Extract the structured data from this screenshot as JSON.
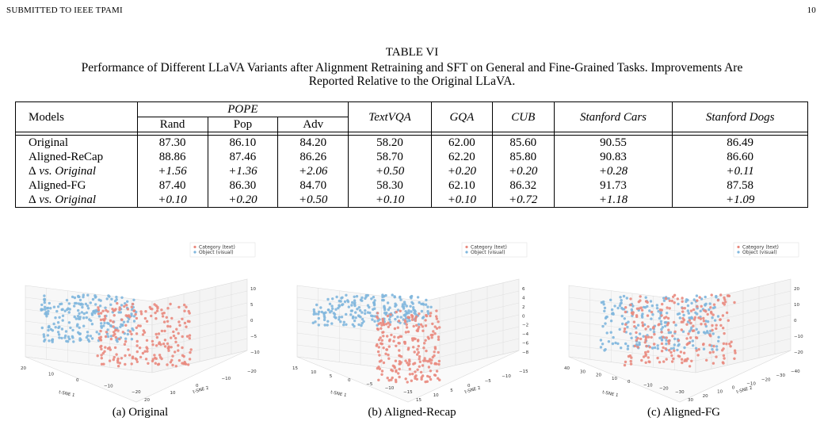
{
  "running_head": {
    "left": "SUBMITTED TO IEEE TPAMI",
    "right": "10"
  },
  "table": {
    "label": "TABLE VI",
    "caption_line1": "Performance of Different LLaVA Variants after Alignment Retraining and SFT on General and Fine-Grained Tasks. Improvements Are",
    "caption_line2": "Reported Relative to the Original LLaVA.",
    "headers": {
      "models": "Models",
      "pope": "POPE",
      "pope_sub": [
        "Rand",
        "Pop",
        "Adv"
      ],
      "others": [
        "TextVQA",
        "GQA",
        "CUB",
        "Stanford Cars",
        "Stanford Dogs"
      ]
    },
    "delta_symbol": "Δ",
    "rows": [
      {
        "name": "Original",
        "delta": false,
        "values": [
          "87.30",
          "86.10",
          "84.20",
          "58.20",
          "62.00",
          "85.60",
          "90.55",
          "86.49"
        ]
      },
      {
        "name": "Aligned-ReCap",
        "delta": false,
        "values": [
          "88.86",
          "87.46",
          "86.26",
          "58.70",
          "62.20",
          "85.80",
          "90.83",
          "86.60"
        ]
      },
      {
        "name": "vs. Original",
        "delta": true,
        "values": [
          "+1.56",
          "+1.36",
          "+2.06",
          "+0.50",
          "+0.20",
          "+0.20",
          "+0.28",
          "+0.11"
        ]
      },
      {
        "name": "Aligned-FG",
        "delta": false,
        "values": [
          "87.40",
          "86.30",
          "84.70",
          "58.30",
          "62.10",
          "86.32",
          "91.73",
          "87.58"
        ]
      },
      {
        "name": "vs. Original",
        "delta": true,
        "values": [
          "+0.10",
          "+0.20",
          "+0.50",
          "+0.10",
          "+0.10",
          "+0.72",
          "+1.18",
          "+1.09"
        ]
      }
    ]
  },
  "figures": [
    {
      "caption": "(a) Original",
      "legend": [
        "Category (text)",
        "Object (visual)"
      ],
      "x_label": "t-SNE 1",
      "y_label": "t-SNE 2",
      "x_ticks": [
        "20",
        "10",
        "0",
        "−10",
        "−20"
      ],
      "y_ticks": [
        "20",
        "10",
        "0",
        "−10",
        "−20"
      ],
      "z_ticks": [
        "10",
        "5",
        "0",
        "−5",
        "−10"
      ]
    },
    {
      "caption": "(b) Aligned-Recap",
      "legend": [
        "Category (text)",
        "Object (visual)"
      ],
      "x_label": "t-SNE 1",
      "y_label": "t-SNE 2",
      "x_ticks": [
        "15",
        "10",
        "5",
        "0",
        "−5",
        "−10",
        "−15"
      ],
      "y_ticks": [
        "15",
        "10",
        "5",
        "0",
        "−5",
        "−10",
        "−15"
      ],
      "z_ticks": [
        "6",
        "4",
        "2",
        "0",
        "−2",
        "−4",
        "−6",
        "−8"
      ]
    },
    {
      "caption": "(c) Aligned-FG",
      "legend": [
        "Category (text)",
        "Object (visual)"
      ],
      "x_label": "t-SNE 1",
      "y_label": "t-SNE 2",
      "x_ticks": [
        "40",
        "30",
        "20",
        "10",
        "0",
        "−10",
        "−20",
        "−30"
      ],
      "y_ticks": [
        "30",
        "20",
        "10",
        "0",
        "−10",
        "−20",
        "−30",
        "−40"
      ],
      "z_ticks": [
        "20",
        "10",
        "0",
        "−10",
        "−20"
      ]
    }
  ],
  "colors": {
    "text_points": "#e9897e",
    "visual_points": "#7fb6dd"
  }
}
